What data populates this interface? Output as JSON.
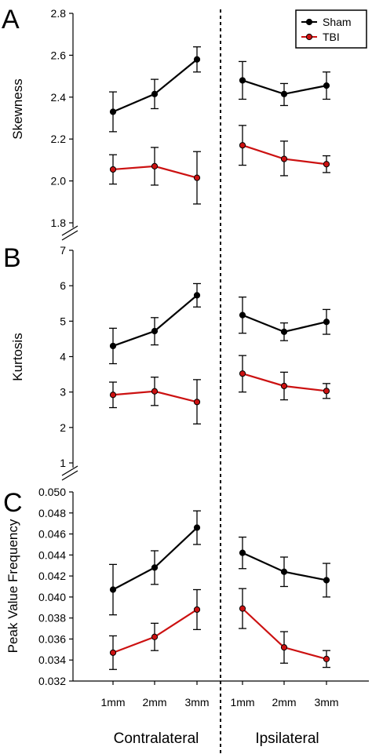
{
  "legend": {
    "items": [
      {
        "label": "Sham",
        "color": "#000000"
      },
      {
        "label": "TBI",
        "color": "#cc1111"
      }
    ],
    "placement": "top-right"
  },
  "x_axis": {
    "tick_labels": [
      "1mm",
      "2mm",
      "3mm",
      "1mm",
      "2mm",
      "3mm"
    ],
    "groups": [
      "Contralateral",
      "Ipsilateral"
    ]
  },
  "chart_data": [
    {
      "type": "line",
      "panel": "A",
      "ylabel": "Skewness",
      "ylim": [
        1.8,
        2.8
      ],
      "yticks": [
        1.8,
        2.0,
        2.2,
        2.4,
        2.6,
        2.8
      ],
      "ytick_labels": [
        "1.8",
        "2.0",
        "2.2",
        "2.4",
        "2.6",
        "2.8"
      ],
      "axis_break": true,
      "grid": false,
      "series": [
        {
          "name": "Sham",
          "color": "#000000",
          "contralateral": {
            "x": [
              "1mm",
              "2mm",
              "3mm"
            ],
            "y": [
              2.33,
              2.415,
              2.58
            ],
            "err_low": [
              2.235,
              2.345,
              2.52
            ],
            "err_high": [
              2.425,
              2.485,
              2.64
            ]
          },
          "ipsilateral": {
            "x": [
              "1mm",
              "2mm",
              "3mm"
            ],
            "y": [
              2.48,
              2.415,
              2.455
            ],
            "err_low": [
              2.39,
              2.36,
              2.39
            ],
            "err_high": [
              2.57,
              2.465,
              2.52
            ]
          }
        },
        {
          "name": "TBI",
          "color": "#cc1111",
          "contralateral": {
            "x": [
              "1mm",
              "2mm",
              "3mm"
            ],
            "y": [
              2.055,
              2.07,
              2.015
            ],
            "err_low": [
              1.985,
              1.98,
              1.89
            ],
            "err_high": [
              2.125,
              2.16,
              2.14
            ]
          },
          "ipsilateral": {
            "x": [
              "1mm",
              "2mm",
              "3mm"
            ],
            "y": [
              2.17,
              2.105,
              2.08
            ],
            "err_low": [
              2.075,
              2.025,
              2.04
            ],
            "err_high": [
              2.265,
              2.19,
              2.12
            ]
          }
        }
      ]
    },
    {
      "type": "line",
      "panel": "B",
      "ylabel": "Kurtosis",
      "ylim": [
        1,
        7
      ],
      "yticks": [
        1,
        2,
        3,
        4,
        5,
        6,
        7
      ],
      "ytick_labels": [
        "1",
        "2",
        "3",
        "4",
        "5",
        "6",
        "7"
      ],
      "axis_break": true,
      "grid": false,
      "series": [
        {
          "name": "Sham",
          "color": "#000000",
          "contralateral": {
            "x": [
              "1mm",
              "2mm",
              "3mm"
            ],
            "y": [
              4.3,
              4.72,
              5.73
            ],
            "err_low": [
              3.8,
              4.33,
              5.4
            ],
            "err_high": [
              4.8,
              5.1,
              6.06
            ]
          },
          "ipsilateral": {
            "x": [
              "1mm",
              "2mm",
              "3mm"
            ],
            "y": [
              5.17,
              4.7,
              4.98
            ],
            "err_low": [
              4.66,
              4.45,
              4.63
            ],
            "err_high": [
              5.68,
              4.95,
              5.33
            ]
          }
        },
        {
          "name": "TBI",
          "color": "#cc1111",
          "contralateral": {
            "x": [
              "1mm",
              "2mm",
              "3mm"
            ],
            "y": [
              2.92,
              3.02,
              2.72
            ],
            "err_low": [
              2.56,
              2.62,
              2.1
            ],
            "err_high": [
              3.28,
              3.42,
              3.35
            ]
          },
          "ipsilateral": {
            "x": [
              "1mm",
              "2mm",
              "3mm"
            ],
            "y": [
              3.52,
              3.17,
              3.03
            ],
            "err_low": [
              3.0,
              2.78,
              2.82
            ],
            "err_high": [
              4.03,
              3.56,
              3.24
            ]
          }
        }
      ]
    },
    {
      "type": "line",
      "panel": "C",
      "ylabel": "Peak Value Frequency",
      "ylim": [
        0.032,
        0.05
      ],
      "yticks": [
        0.032,
        0.034,
        0.036,
        0.038,
        0.04,
        0.042,
        0.044,
        0.046,
        0.048,
        0.05
      ],
      "ytick_labels": [
        "0.032",
        "0.034",
        "0.036",
        "0.038",
        "0.040",
        "0.042",
        "0.044",
        "0.046",
        "0.048",
        "0.050"
      ],
      "axis_break": false,
      "grid": false,
      "series": [
        {
          "name": "Sham",
          "color": "#000000",
          "contralateral": {
            "x": [
              "1mm",
              "2mm",
              "3mm"
            ],
            "y": [
              0.0407,
              0.0428,
              0.0466
            ],
            "err_low": [
              0.0383,
              0.0412,
              0.045
            ],
            "err_high": [
              0.0431,
              0.0444,
              0.0482
            ]
          },
          "ipsilateral": {
            "x": [
              "1mm",
              "2mm",
              "3mm"
            ],
            "y": [
              0.0442,
              0.0424,
              0.0416
            ],
            "err_low": [
              0.0427,
              0.041,
              0.04
            ],
            "err_high": [
              0.0457,
              0.0438,
              0.0432
            ]
          }
        },
        {
          "name": "TBI",
          "color": "#cc1111",
          "contralateral": {
            "x": [
              "1mm",
              "2mm",
              "3mm"
            ],
            "y": [
              0.0347,
              0.0362,
              0.0388
            ],
            "err_low": [
              0.0331,
              0.0349,
              0.0369
            ],
            "err_high": [
              0.0363,
              0.0375,
              0.0407
            ]
          },
          "ipsilateral": {
            "x": [
              "1mm",
              "2mm",
              "3mm"
            ],
            "y": [
              0.0389,
              0.0352,
              0.0341
            ],
            "err_low": [
              0.037,
              0.0337,
              0.0333
            ],
            "err_high": [
              0.0408,
              0.0367,
              0.0349
            ]
          }
        }
      ]
    }
  ]
}
